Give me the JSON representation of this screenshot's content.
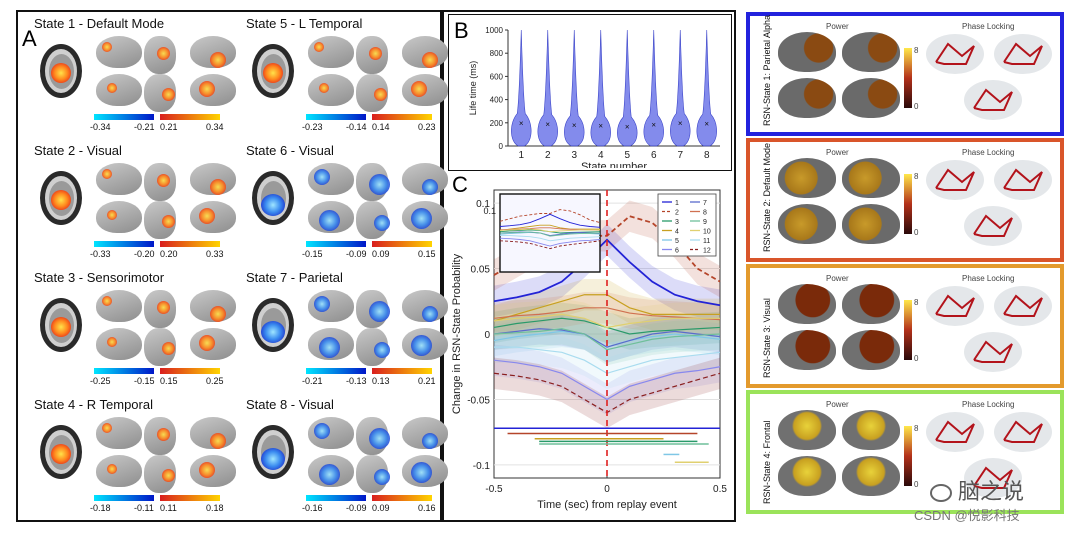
{
  "panel_a": {
    "letter": "A",
    "states": [
      {
        "title": "State 1  -  Default Mode",
        "neg_min": "-0.34",
        "neg_max": "-0.21",
        "pos_min": "0.21",
        "pos_max": "0.34",
        "sign": "pos"
      },
      {
        "title": "State 2  -  Visual",
        "neg_min": "-0.33",
        "neg_max": "-0.20",
        "pos_min": "0.20",
        "pos_max": "0.33",
        "sign": "pos"
      },
      {
        "title": "State 3  -  Sensorimotor",
        "neg_min": "-0.25",
        "neg_max": "-0.15",
        "pos_min": "0.15",
        "pos_max": "0.25",
        "sign": "pos"
      },
      {
        "title": "State 4  -  R Temporal",
        "neg_min": "-0.18",
        "neg_max": "-0.11",
        "pos_min": "0.11",
        "pos_max": "0.18",
        "sign": "pos"
      },
      {
        "title": "State 5  -  L Temporal",
        "neg_min": "-0.23",
        "neg_max": "-0.14",
        "pos_min": "0.14",
        "pos_max": "0.23",
        "sign": "pos"
      },
      {
        "title": "State 6  -  Visual",
        "neg_min": "-0.15",
        "neg_max": "-0.09",
        "pos_min": "0.09",
        "pos_max": "0.15",
        "sign": "neg"
      },
      {
        "title": "State 7  -  Parietal",
        "neg_min": "-0.21",
        "neg_max": "-0.13",
        "pos_min": "0.13",
        "pos_max": "0.21",
        "sign": "neg"
      },
      {
        "title": "State 8  -  Visual",
        "neg_min": "-0.16",
        "neg_max": "-0.09",
        "pos_min": "0.09",
        "pos_max": "0.16",
        "sign": "neg"
      }
    ]
  },
  "panel_b": {
    "letter": "B"
  },
  "panel_c": {
    "letter": "C"
  },
  "chart_data": [
    {
      "type": "violin",
      "categories": [
        "1",
        "2",
        "3",
        "4",
        "5",
        "6",
        "7",
        "8"
      ],
      "values": [
        200,
        190,
        180,
        175,
        170,
        185,
        200,
        195
      ],
      "medians": [
        200,
        190,
        180,
        175,
        170,
        185,
        200,
        195
      ],
      "xlabel": "State number",
      "ylabel": "Life time (ms)",
      "ylim": [
        0,
        1000
      ],
      "yticks": [
        "0",
        "200",
        "400",
        "600",
        "800",
        "1000"
      ],
      "color": "#5a64e6"
    },
    {
      "type": "line",
      "x": [
        -0.5,
        -0.4,
        -0.3,
        -0.2,
        -0.1,
        0,
        0.1,
        0.2,
        0.3,
        0.4,
        0.5
      ],
      "series": [
        {
          "name": "1",
          "color": "#2323d6",
          "dash": false,
          "values": [
            0.025,
            0.028,
            0.032,
            0.04,
            0.055,
            0.072,
            0.055,
            0.04,
            0.03,
            0.025,
            0.022
          ]
        },
        {
          "name": "2",
          "color": "#b5452a",
          "dash": true,
          "values": [
            0.045,
            0.055,
            0.065,
            0.07,
            0.075,
            0.075,
            0.09,
            0.085,
            0.07,
            0.05,
            0.04
          ]
        },
        {
          "name": "3",
          "color": "#2a9a6a",
          "dash": false,
          "values": [
            0.005,
            0.008,
            0.01,
            0.012,
            0.01,
            0.005,
            0.0,
            0.002,
            0.003,
            0.004,
            0.005
          ]
        },
        {
          "name": "4",
          "color": "#c8a020",
          "dash": false,
          "values": [
            0.01,
            0.015,
            0.02,
            0.025,
            0.03,
            0.03,
            0.02,
            0.015,
            0.015,
            0.015,
            0.015
          ]
        },
        {
          "name": "5",
          "color": "#7fc7e6",
          "dash": false,
          "values": [
            -0.005,
            -0.002,
            0.0,
            0.002,
            0.0,
            -0.01,
            -0.005,
            -0.002,
            0.0,
            -0.002,
            -0.004
          ]
        },
        {
          "name": "6",
          "color": "#8888ee",
          "dash": false,
          "values": [
            -0.02,
            -0.022,
            -0.025,
            -0.03,
            -0.04,
            -0.05,
            -0.04,
            -0.035,
            -0.03,
            -0.028,
            -0.025
          ]
        },
        {
          "name": "7",
          "color": "#5b6bcc",
          "dash": false,
          "values": [
            0.0,
            0.002,
            0.004,
            0.003,
            0.0,
            -0.01,
            -0.005,
            0.0,
            0.002,
            0.0,
            -0.002
          ]
        },
        {
          "name": "8",
          "color": "#d07050",
          "dash": false,
          "values": [
            0.012,
            0.014,
            0.015,
            0.017,
            0.02,
            0.02,
            0.016,
            0.014,
            0.013,
            0.012,
            0.011
          ]
        },
        {
          "name": "9",
          "color": "#6fbf9a",
          "dash": false,
          "values": [
            0.0,
            0.001,
            0.002,
            0.004,
            0.0,
            -0.012,
            -0.008,
            -0.004,
            -0.002,
            -0.001,
            0.0
          ]
        },
        {
          "name": "10",
          "color": "#e0d070",
          "dash": false,
          "values": [
            0.01,
            0.012,
            0.013,
            0.015,
            0.012,
            0.005,
            0.008,
            0.01,
            0.012,
            0.012,
            0.012
          ]
        },
        {
          "name": "11",
          "color": "#a9dcef",
          "dash": false,
          "values": [
            -0.01,
            -0.01,
            -0.012,
            -0.014,
            -0.02,
            -0.03,
            -0.025,
            -0.02,
            -0.018,
            -0.016,
            -0.014
          ]
        },
        {
          "name": "12",
          "color": "#8a1f1f",
          "dash": true,
          "values": [
            -0.03,
            -0.032,
            -0.035,
            -0.04,
            -0.05,
            -0.06,
            -0.05,
            -0.045,
            -0.04,
            -0.035,
            -0.03
          ]
        }
      ],
      "xlabel": "Time (sec) from replay event",
      "ylabel": "Change in RSN-State Probability",
      "xlim": [
        -0.5,
        0.5
      ],
      "ylim": [
        -0.11,
        0.11
      ],
      "xticks": [
        "-0.5",
        "0",
        "0.5"
      ],
      "yticks": [
        "0.1",
        "0.05",
        "0",
        "-0.05",
        "-0.1"
      ],
      "inset_yticks": [
        "0.1"
      ],
      "legend_col1": [
        "1",
        "2",
        "3",
        "4",
        "5",
        "6"
      ],
      "legend_col2": [
        "7",
        "8",
        "9",
        "10",
        "11",
        "12"
      ]
    }
  ],
  "panel_right": {
    "power": "Power",
    "phase": "Phase Locking",
    "scale_max": "8",
    "scale_min": "0",
    "rows": [
      {
        "label": "RSN-State 1: Parietal Alpha",
        "border": "#2222dd"
      },
      {
        "label": "RSN-State 2: Default Mode",
        "border": "#d9552a"
      },
      {
        "label": "RSN-State 3: Visual",
        "border": "#e39a2d"
      },
      {
        "label": "RSN-State 4: Frontal",
        "border": "#9be35a"
      }
    ]
  },
  "watermark": {
    "brand": "脑之说",
    "credit": "CSDN @悦影科技"
  }
}
